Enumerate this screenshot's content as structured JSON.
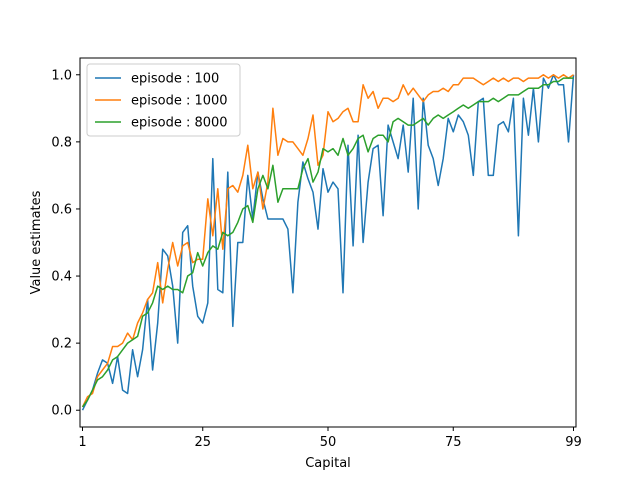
{
  "chart_data": {
    "type": "line",
    "xlabel": "Capital",
    "ylabel": "Value estimates",
    "xlim": [
      0.5,
      99.5
    ],
    "ylim": [
      -0.05,
      1.05
    ],
    "xticks": [
      1,
      25,
      50,
      75,
      99
    ],
    "yticks": [
      0.0,
      0.2,
      0.4,
      0.6,
      0.8,
      1.0
    ],
    "grid": false,
    "legend_position": "top-left",
    "x": [
      1,
      2,
      3,
      4,
      5,
      6,
      7,
      8,
      9,
      10,
      11,
      12,
      13,
      14,
      15,
      16,
      17,
      18,
      19,
      20,
      21,
      22,
      23,
      24,
      25,
      26,
      27,
      28,
      29,
      30,
      31,
      32,
      33,
      34,
      35,
      36,
      37,
      38,
      39,
      40,
      41,
      42,
      43,
      44,
      45,
      46,
      47,
      48,
      49,
      50,
      51,
      52,
      53,
      54,
      55,
      56,
      57,
      58,
      59,
      60,
      61,
      62,
      63,
      64,
      65,
      66,
      67,
      68,
      69,
      70,
      71,
      72,
      73,
      74,
      75,
      76,
      77,
      78,
      79,
      80,
      81,
      82,
      83,
      84,
      85,
      86,
      87,
      88,
      89,
      90,
      91,
      92,
      93,
      94,
      95,
      96,
      97,
      98,
      99
    ],
    "series": [
      {
        "name": "episode : 100",
        "color": "#1f77b4",
        "values": [
          0.0,
          0.03,
          0.06,
          0.11,
          0.15,
          0.14,
          0.08,
          0.16,
          0.06,
          0.05,
          0.18,
          0.1,
          0.18,
          0.33,
          0.12,
          0.26,
          0.48,
          0.46,
          0.37,
          0.2,
          0.53,
          0.55,
          0.37,
          0.28,
          0.26,
          0.32,
          0.75,
          0.36,
          0.35,
          0.71,
          0.25,
          0.5,
          0.5,
          0.7,
          0.57,
          0.71,
          0.63,
          0.57,
          0.57,
          0.57,
          0.57,
          0.54,
          0.35,
          0.62,
          0.74,
          0.69,
          0.65,
          0.54,
          0.72,
          0.65,
          0.68,
          0.66,
          0.35,
          0.79,
          0.49,
          0.82,
          0.5,
          0.68,
          0.78,
          0.79,
          0.58,
          0.85,
          0.8,
          0.75,
          0.85,
          0.71,
          0.93,
          0.6,
          0.93,
          0.79,
          0.75,
          0.67,
          0.75,
          0.87,
          0.83,
          0.88,
          0.86,
          0.82,
          0.7,
          0.92,
          0.93,
          0.7,
          0.7,
          0.85,
          0.86,
          0.83,
          0.93,
          0.52,
          0.93,
          0.82,
          0.96,
          0.8,
          0.99,
          0.96,
          1.0,
          0.97,
          0.97,
          0.8,
          1.0
        ]
      },
      {
        "name": "episode : 1000",
        "color": "#ff7f0e",
        "values": [
          0.01,
          0.04,
          0.05,
          0.1,
          0.12,
          0.14,
          0.19,
          0.19,
          0.2,
          0.23,
          0.21,
          0.26,
          0.29,
          0.33,
          0.35,
          0.44,
          0.32,
          0.42,
          0.5,
          0.43,
          0.49,
          0.5,
          0.44,
          0.45,
          0.45,
          0.63,
          0.52,
          0.66,
          0.48,
          0.66,
          0.67,
          0.65,
          0.7,
          0.79,
          0.66,
          0.71,
          0.6,
          0.68,
          0.9,
          0.76,
          0.81,
          0.8,
          0.8,
          0.78,
          0.76,
          0.81,
          0.88,
          0.73,
          0.76,
          0.89,
          0.86,
          0.87,
          0.89,
          0.9,
          0.86,
          0.86,
          0.97,
          0.93,
          0.95,
          0.9,
          0.93,
          0.93,
          0.92,
          0.93,
          0.97,
          0.94,
          0.96,
          0.94,
          0.92,
          0.94,
          0.95,
          0.95,
          0.96,
          0.95,
          0.97,
          0.97,
          0.99,
          0.99,
          0.99,
          0.98,
          0.97,
          0.98,
          0.99,
          0.98,
          0.99,
          0.98,
          0.99,
          0.99,
          0.98,
          0.99,
          0.99,
          0.99,
          1.0,
          0.99,
          1.0,
          0.99,
          1.0,
          0.99,
          1.0
        ]
      },
      {
        "name": "episode : 8000",
        "color": "#2ca02c",
        "values": [
          0.01,
          0.03,
          0.06,
          0.09,
          0.1,
          0.12,
          0.15,
          0.16,
          0.18,
          0.2,
          0.21,
          0.22,
          0.28,
          0.29,
          0.32,
          0.37,
          0.36,
          0.37,
          0.36,
          0.36,
          0.35,
          0.4,
          0.41,
          0.47,
          0.43,
          0.47,
          0.49,
          0.48,
          0.53,
          0.52,
          0.53,
          0.56,
          0.6,
          0.61,
          0.56,
          0.66,
          0.7,
          0.66,
          0.73,
          0.62,
          0.66,
          0.66,
          0.66,
          0.66,
          0.72,
          0.75,
          0.68,
          0.71,
          0.78,
          0.77,
          0.78,
          0.76,
          0.81,
          0.76,
          0.78,
          0.81,
          0.82,
          0.77,
          0.81,
          0.82,
          0.82,
          0.8,
          0.86,
          0.87,
          0.86,
          0.85,
          0.85,
          0.86,
          0.87,
          0.85,
          0.87,
          0.88,
          0.87,
          0.88,
          0.89,
          0.9,
          0.91,
          0.9,
          0.91,
          0.92,
          0.92,
          0.92,
          0.93,
          0.92,
          0.93,
          0.94,
          0.94,
          0.94,
          0.95,
          0.96,
          0.96,
          0.96,
          0.97,
          0.97,
          0.98,
          0.98,
          0.99,
          0.99,
          0.99
        ]
      }
    ]
  }
}
